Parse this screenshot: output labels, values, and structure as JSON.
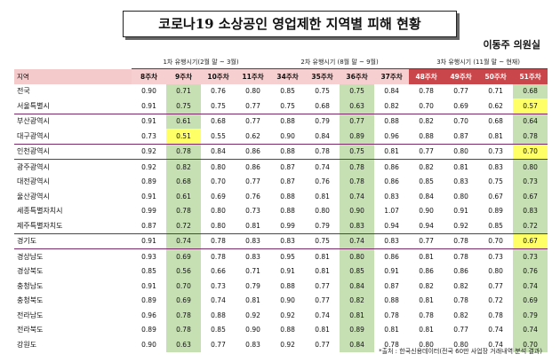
{
  "title": "코로나19 소상공인 영업제한 지역별 피해 현황",
  "author": "이동주 의원실",
  "periods": [
    "1차 유행시기(2월 말 ~ 3월)",
    "2차 유행시기 (8월 말 ~ 9월)",
    "3차 유행시기 (11월 말 ~ 현재)"
  ],
  "header": {
    "region_label": "지역",
    "weeks": [
      "8주차",
      "9주차",
      "10주차",
      "11주차",
      "34주차",
      "35주차",
      "36주차",
      "37주차",
      "48주차",
      "49주차",
      "50주차",
      "51주차"
    ]
  },
  "rows": [
    {
      "region": "전국",
      "values": [
        "0.90",
        "0.71",
        "0.76",
        "0.80",
        "0.85",
        "0.75",
        "0.75",
        "0.84",
        "0.78",
        "0.77",
        "0.71",
        "0.68"
      ]
    },
    {
      "region": "서울특별시",
      "values": [
        "0.91",
        "0.75",
        "0.75",
        "0.77",
        "0.75",
        "0.68",
        "0.63",
        "0.82",
        "0.70",
        "0.69",
        "0.62",
        "0.57"
      ]
    },
    {
      "region": "부산광역시",
      "values": [
        "0.91",
        "0.61",
        "0.68",
        "0.77",
        "0.88",
        "0.79",
        "0.77",
        "0.88",
        "0.82",
        "0.70",
        "0.68",
        "0.64"
      ]
    },
    {
      "region": "대구광역시",
      "values": [
        "0.73",
        "0.51",
        "0.55",
        "0.62",
        "0.90",
        "0.84",
        "0.89",
        "0.96",
        "0.88",
        "0.87",
        "0.81",
        "0.78"
      ]
    },
    {
      "region": "인천광역시",
      "values": [
        "0.92",
        "0.78",
        "0.84",
        "0.86",
        "0.88",
        "0.78",
        "0.75",
        "0.81",
        "0.77",
        "0.80",
        "0.73",
        "0.70"
      ]
    },
    {
      "region": "광주광역시",
      "values": [
        "0.92",
        "0.82",
        "0.80",
        "0.86",
        "0.87",
        "0.74",
        "0.78",
        "0.86",
        "0.82",
        "0.81",
        "0.83",
        "0.80"
      ]
    },
    {
      "region": "대전광역시",
      "values": [
        "0.89",
        "0.68",
        "0.70",
        "0.77",
        "0.87",
        "0.76",
        "0.78",
        "0.86",
        "0.85",
        "0.83",
        "0.75",
        "0.73"
      ]
    },
    {
      "region": "울산광역시",
      "values": [
        "0.91",
        "0.61",
        "0.69",
        "0.76",
        "0.88",
        "0.81",
        "0.74",
        "0.83",
        "0.84",
        "0.80",
        "0.67",
        "0.67"
      ]
    },
    {
      "region": "세종특별자치시",
      "values": [
        "0.99",
        "0.78",
        "0.80",
        "0.73",
        "0.88",
        "0.80",
        "0.90",
        "1.07",
        "0.90",
        "0.91",
        "0.89",
        "0.83"
      ]
    },
    {
      "region": "제주특별자치도",
      "values": [
        "0.87",
        "0.72",
        "0.80",
        "0.81",
        "0.99",
        "0.79",
        "0.83",
        "0.94",
        "0.94",
        "0.92",
        "0.85",
        "0.72"
      ]
    },
    {
      "region": "경기도",
      "values": [
        "0.91",
        "0.74",
        "0.78",
        "0.83",
        "0.83",
        "0.75",
        "0.74",
        "0.83",
        "0.77",
        "0.78",
        "0.70",
        "0.67"
      ]
    },
    {
      "region": "경상남도",
      "values": [
        "0.93",
        "0.69",
        "0.78",
        "0.83",
        "0.95",
        "0.81",
        "0.80",
        "0.86",
        "0.81",
        "0.78",
        "0.73",
        "0.73"
      ]
    },
    {
      "region": "경상북도",
      "values": [
        "0.85",
        "0.56",
        "0.66",
        "0.71",
        "0.91",
        "0.81",
        "0.85",
        "0.91",
        "0.86",
        "0.86",
        "0.80",
        "0.76"
      ]
    },
    {
      "region": "충청남도",
      "values": [
        "0.91",
        "0.70",
        "0.73",
        "0.79",
        "0.88",
        "0.77",
        "0.84",
        "0.87",
        "0.82",
        "0.82",
        "0.77",
        "0.74"
      ]
    },
    {
      "region": "충청북도",
      "values": [
        "0.89",
        "0.69",
        "0.74",
        "0.81",
        "0.90",
        "0.77",
        "0.82",
        "0.88",
        "0.81",
        "0.78",
        "0.72",
        "0.69"
      ]
    },
    {
      "region": "전라남도",
      "values": [
        "0.96",
        "0.78",
        "0.88",
        "0.92",
        "0.92",
        "0.74",
        "0.81",
        "0.78",
        "0.78",
        "0.82",
        "0.78",
        "0.79"
      ]
    },
    {
      "region": "전라북도",
      "values": [
        "0.89",
        "0.78",
        "0.85",
        "0.90",
        "0.88",
        "0.81",
        "0.89",
        "0.81",
        "0.81",
        "0.77",
        "0.74",
        "0.74"
      ]
    },
    {
      "region": "강원도",
      "values": [
        "0.90",
        "0.63",
        "0.77",
        "0.83",
        "0.92",
        "0.77",
        "0.84",
        "0.78",
        "0.80",
        "0.80",
        "0.74",
        "0.70"
      ]
    }
  ],
  "highlight_color_green": "#c6e0b4",
  "highlight_color_yellow": "#ffff66",
  "source": "*출처 : 한국신용데이터(전국 60만 사업장 거래내역 분석 결과)"
}
